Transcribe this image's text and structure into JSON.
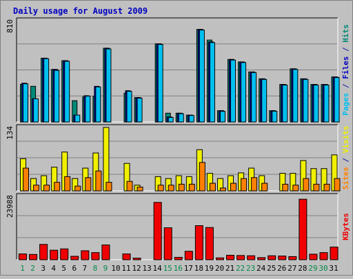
{
  "chart_data": {
    "type": "bar",
    "title": "Daily usage for August 2009",
    "categories": [
      "1",
      "2",
      "3",
      "4",
      "5",
      "6",
      "7",
      "8",
      "9",
      "10",
      "11",
      "12",
      "13",
      "14",
      "15",
      "16",
      "17",
      "18",
      "19",
      "20",
      "21",
      "22",
      "23",
      "24",
      "25",
      "26",
      "27",
      "28",
      "29",
      "30",
      "31"
    ],
    "weekend_days": [
      "1",
      "2",
      "8",
      "9",
      "15",
      "16",
      "22",
      "23",
      "29",
      "30"
    ],
    "panels": [
      {
        "key": "hits",
        "max_label": "810",
        "ymax": 810,
        "axis_label_parts": [
          {
            "text": "Pages",
            "color": "#00c0f0"
          },
          {
            "text": " / ",
            "color": "#1a1aa6"
          },
          {
            "text": "Files",
            "color": "#0000c0"
          },
          {
            "text": " / ",
            "color": "#1a1aa6"
          },
          {
            "text": "Hits",
            "color": "#008a78"
          }
        ],
        "series": [
          {
            "role": "hits",
            "color": "#008a78",
            "values": [
              300,
              285,
              510,
              420,
              490,
              170,
              200,
              205,
              590,
              0,
              230,
              195,
              0,
              625,
              70,
              70,
              55,
              740,
              655,
              90,
              500,
              480,
              400,
              345,
              90,
              300,
              425,
              345,
              300,
              300,
              360
            ]
          },
          {
            "role": "files",
            "color": "#0000c0",
            "values": [
              310,
              185,
              510,
              420,
              490,
              55,
              210,
              285,
              590,
              0,
              250,
              195,
              0,
              625,
              40,
              70,
              55,
              740,
              640,
              90,
              500,
              480,
              400,
              345,
              90,
              300,
              425,
              345,
              300,
              300,
              360
            ]
          },
          {
            "role": "pages",
            "color": "#00c0f0",
            "values": [
              305,
              185,
              506,
              412,
              485,
              55,
              206,
              280,
              584,
              0,
              245,
              190,
              0,
              620,
              36,
              66,
              52,
              735,
              635,
              85,
              495,
              475,
              395,
              340,
              86,
              295,
              420,
              340,
              295,
              295,
              355
            ]
          }
        ]
      },
      {
        "key": "visits",
        "max_label": "134",
        "ymax": 134,
        "axis_label_parts": [
          {
            "text": "Sites",
            "color": "#ff8000"
          },
          {
            "text": " / ",
            "color": "#1a1aa6"
          },
          {
            "text": "Visits",
            "color": "#f0f000"
          }
        ],
        "series": [
          {
            "role": "visits",
            "color": "#f0f000",
            "values": [
              68,
              26,
              32,
              50,
              82,
              26,
              48,
              80,
              134,
              0,
              58,
              12,
              0,
              30,
              26,
              32,
              30,
              87,
              37,
              26,
              32,
              38,
              48,
              32,
              0,
              37,
              37,
              64,
              47,
              47,
              76
            ]
          },
          {
            "role": "sites",
            "color": "#ff8000",
            "values": [
              48,
              12,
              12,
              18,
              30,
              10,
              28,
              42,
              18,
              0,
              20,
              8,
              0,
              12,
              12,
              14,
              14,
              60,
              16,
              6,
              16,
              26,
              28,
              16,
              0,
              14,
              12,
              26,
              14,
              14,
              26
            ]
          }
        ]
      },
      {
        "key": "kbytes",
        "max_label": "23988",
        "ymax": 23988,
        "axis_label_parts": [
          {
            "text": "KBytes",
            "color": "#f00000"
          }
        ],
        "series": [
          {
            "role": "kbytes",
            "color": "#f00000",
            "values": [
              2200,
              2000,
              5800,
              3600,
              4100,
              1300,
              3400,
              2700,
              5600,
              0,
              2200,
              600,
              0,
              21700,
              12100,
              900,
              3200,
              12900,
              12200,
              700,
              1700,
              1600,
              1500,
              800,
              1500,
              1400,
              1200,
              22900,
              2100,
              2700,
              4800
            ]
          }
        ]
      }
    ]
  }
}
